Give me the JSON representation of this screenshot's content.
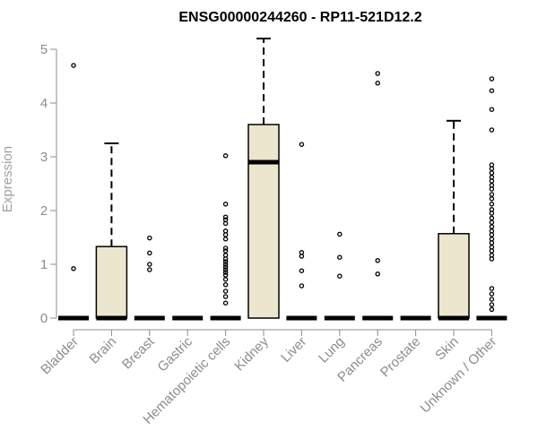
{
  "chart_data": {
    "type": "boxplot",
    "title": "ENSG00000244260 - RP11-521D12.2",
    "xlabel": "",
    "ylabel": "Expression",
    "ylim": [
      0,
      5.2
    ],
    "yticks": [
      0,
      1,
      2,
      3,
      4,
      5
    ],
    "colors": {
      "box_fill": "#ede6ce",
      "stroke": "#000000",
      "axis": "#8c8c8c"
    },
    "categories": [
      "Bladder",
      "Brain",
      "Breast",
      "Gastric",
      "Hematopoietic cells",
      "Kidney",
      "Liver",
      "Lung",
      "Pancreas",
      "Prostate",
      "Skin",
      "Unknown / Other"
    ],
    "boxes": [
      {
        "category": "Bladder",
        "min": 0,
        "q1": 0,
        "median": 0,
        "q3": 0,
        "max": 0,
        "outliers": [
          4.7,
          0.92
        ]
      },
      {
        "category": "Brain",
        "min": 0,
        "q1": 0,
        "median": 0,
        "q3": 1.33,
        "max": 3.25,
        "outliers": []
      },
      {
        "category": "Breast",
        "min": 0,
        "q1": 0,
        "median": 0,
        "q3": 0,
        "max": 0,
        "outliers": [
          1.49,
          1.21,
          1.0,
          0.9
        ]
      },
      {
        "category": "Gastric",
        "min": 0,
        "q1": 0,
        "median": 0,
        "q3": 0,
        "max": 0,
        "outliers": []
      },
      {
        "category": "Hematopoietic cells",
        "min": 0,
        "q1": 0,
        "median": 0,
        "q3": 0,
        "max": 0,
        "outliers": [
          3.02,
          2.12,
          1.88,
          1.83,
          1.76,
          1.62,
          1.55,
          1.47,
          1.3,
          1.25,
          1.17,
          1.1,
          1.05,
          1.0,
          0.95,
          0.9,
          0.85,
          0.8,
          0.72,
          0.62,
          0.5,
          0.4,
          0.28
        ]
      },
      {
        "category": "Kidney",
        "min": 0,
        "q1": 0,
        "median": 2.9,
        "q3": 3.6,
        "max": 5.2,
        "outliers": []
      },
      {
        "category": "Liver",
        "min": 0,
        "q1": 0,
        "median": 0,
        "q3": 0,
        "max": 0,
        "outliers": [
          3.23,
          1.22,
          1.15,
          0.88,
          0.6
        ]
      },
      {
        "category": "Lung",
        "min": 0,
        "q1": 0,
        "median": 0,
        "q3": 0,
        "max": 0,
        "outliers": [
          1.56,
          1.13,
          0.78
        ]
      },
      {
        "category": "Pancreas",
        "min": 0,
        "q1": 0,
        "median": 0,
        "q3": 0,
        "max": 0,
        "outliers": [
          4.55,
          4.37,
          1.07,
          0.82
        ]
      },
      {
        "category": "Prostate",
        "min": 0,
        "q1": 0,
        "median": 0,
        "q3": 0,
        "max": 0,
        "outliers": []
      },
      {
        "category": "Skin",
        "min": 0,
        "q1": 0,
        "median": 0,
        "q3": 1.57,
        "max": 3.67,
        "outliers": []
      },
      {
        "category": "Unknown / Other",
        "min": 0,
        "q1": 0,
        "median": 0,
        "q3": 0,
        "max": 0,
        "outliers": [
          4.45,
          4.23,
          3.88,
          3.5,
          2.85,
          2.78,
          2.7,
          2.62,
          2.55,
          2.47,
          2.4,
          2.3,
          2.22,
          2.12,
          2.02,
          1.95,
          1.86,
          1.78,
          1.7,
          1.62,
          1.55,
          1.47,
          1.4,
          1.32,
          1.25,
          1.17,
          1.1,
          0.55,
          0.45,
          0.35,
          0.25,
          0.16
        ]
      }
    ]
  }
}
